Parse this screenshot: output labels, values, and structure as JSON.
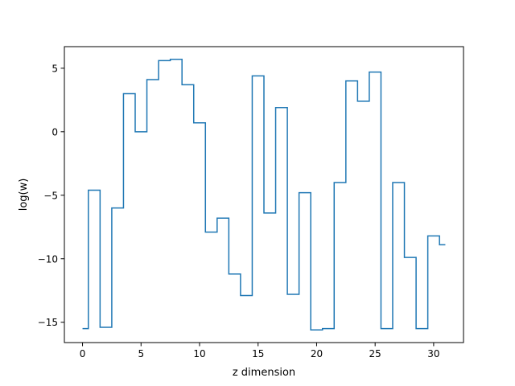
{
  "chart_data": {
    "type": "line",
    "drawstyle": "steps-mid",
    "title": "",
    "xlabel": "z dimension",
    "ylabel": "log(w)",
    "xlim": [
      -1.55,
      32.55
    ],
    "ylim": [
      -16.6,
      6.7
    ],
    "x_ticks": [
      0,
      5,
      10,
      15,
      20,
      25,
      30
    ],
    "y_ticks": [
      -15,
      -10,
      -5,
      0,
      5
    ],
    "x_tick_labels": [
      "0",
      "5",
      "10",
      "15",
      "20",
      "25",
      "30"
    ],
    "y_tick_labels": [
      "−15",
      "−10",
      "−5",
      "0",
      "5"
    ],
    "grid": false,
    "series": [
      {
        "color": "#1f77b4",
        "x": [
          0,
          1,
          2,
          3,
          4,
          5,
          6,
          7,
          8,
          9,
          10,
          11,
          12,
          13,
          14,
          15,
          16,
          17,
          18,
          19,
          20,
          21,
          22,
          23,
          24,
          25,
          26,
          27,
          28,
          29,
          30,
          31
        ],
        "values": [
          -15.5,
          -4.6,
          -15.4,
          -6.0,
          3.0,
          0.0,
          4.1,
          5.6,
          5.7,
          3.7,
          0.7,
          -7.9,
          -6.8,
          -11.2,
          -12.9,
          4.4,
          -6.4,
          1.9,
          -12.8,
          -4.8,
          -15.6,
          -15.5,
          -4.0,
          4.0,
          2.4,
          4.7,
          -15.5,
          -4.0,
          -9.9,
          -15.5,
          -8.2,
          -8.9
        ]
      }
    ]
  }
}
